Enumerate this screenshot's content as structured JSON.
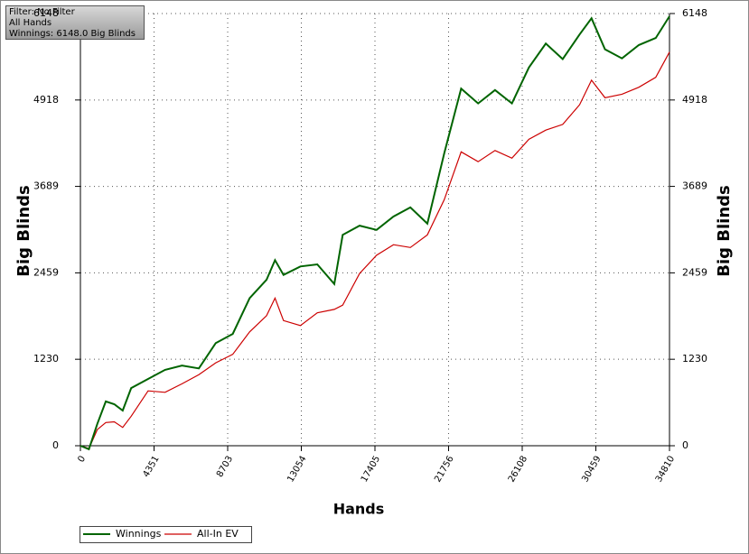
{
  "chart_data": {
    "type": "line",
    "info": [
      "Filter: No Filter",
      "All Hands",
      "Winnings: 6148.0 Big Blinds"
    ],
    "x_label": "Hands",
    "y_label": "Big Blinds",
    "y2_label": "Big Blinds",
    "x": [
      0,
      500,
      1000,
      1500,
      2000,
      2500,
      3000,
      4000,
      5000,
      6000,
      7000,
      8000,
      9000,
      10000,
      11000,
      11500,
      12000,
      13000,
      14000,
      15000,
      15500,
      16500,
      17500,
      18500,
      19500,
      20500,
      21500,
      22500,
      23500,
      24500,
      25500,
      26500,
      27500,
      28500,
      29500,
      30200,
      31000,
      32000,
      33000,
      34000,
      34810
    ],
    "series": [
      {
        "name": "Winnings",
        "color": "#006400",
        "values": [
          0,
          -50,
          310,
          630,
          590,
          500,
          820,
          950,
          1080,
          1140,
          1100,
          1460,
          1590,
          2100,
          2360,
          2640,
          2430,
          2550,
          2580,
          2300,
          3000,
          3130,
          3070,
          3260,
          3390,
          3160,
          4160,
          5080,
          4870,
          5060,
          4870,
          5380,
          5720,
          5500,
          5850,
          6080,
          5640,
          5510,
          5700,
          5800,
          6110
        ]
      },
      {
        "name": "All-In EV",
        "color": "#cc0000",
        "values": [
          0,
          -40,
          230,
          330,
          340,
          260,
          420,
          780,
          760,
          880,
          1010,
          1180,
          1300,
          1620,
          1850,
          2100,
          1780,
          1710,
          1890,
          1940,
          2000,
          2450,
          2710,
          2860,
          2820,
          3000,
          3500,
          4180,
          4040,
          4200,
          4090,
          4360,
          4490,
          4570,
          4850,
          5200,
          4950,
          5000,
          5100,
          5240,
          5600
        ]
      }
    ],
    "xlim": [
      0,
      34810
    ],
    "xticks": [
      0,
      4351,
      8703,
      13054,
      17405,
      21756,
      26108,
      30459,
      34810
    ],
    "ylim": [
      0,
      6148
    ],
    "yticks": [
      0,
      1230,
      2459,
      3689,
      4918,
      6148
    ],
    "grid": true
  }
}
